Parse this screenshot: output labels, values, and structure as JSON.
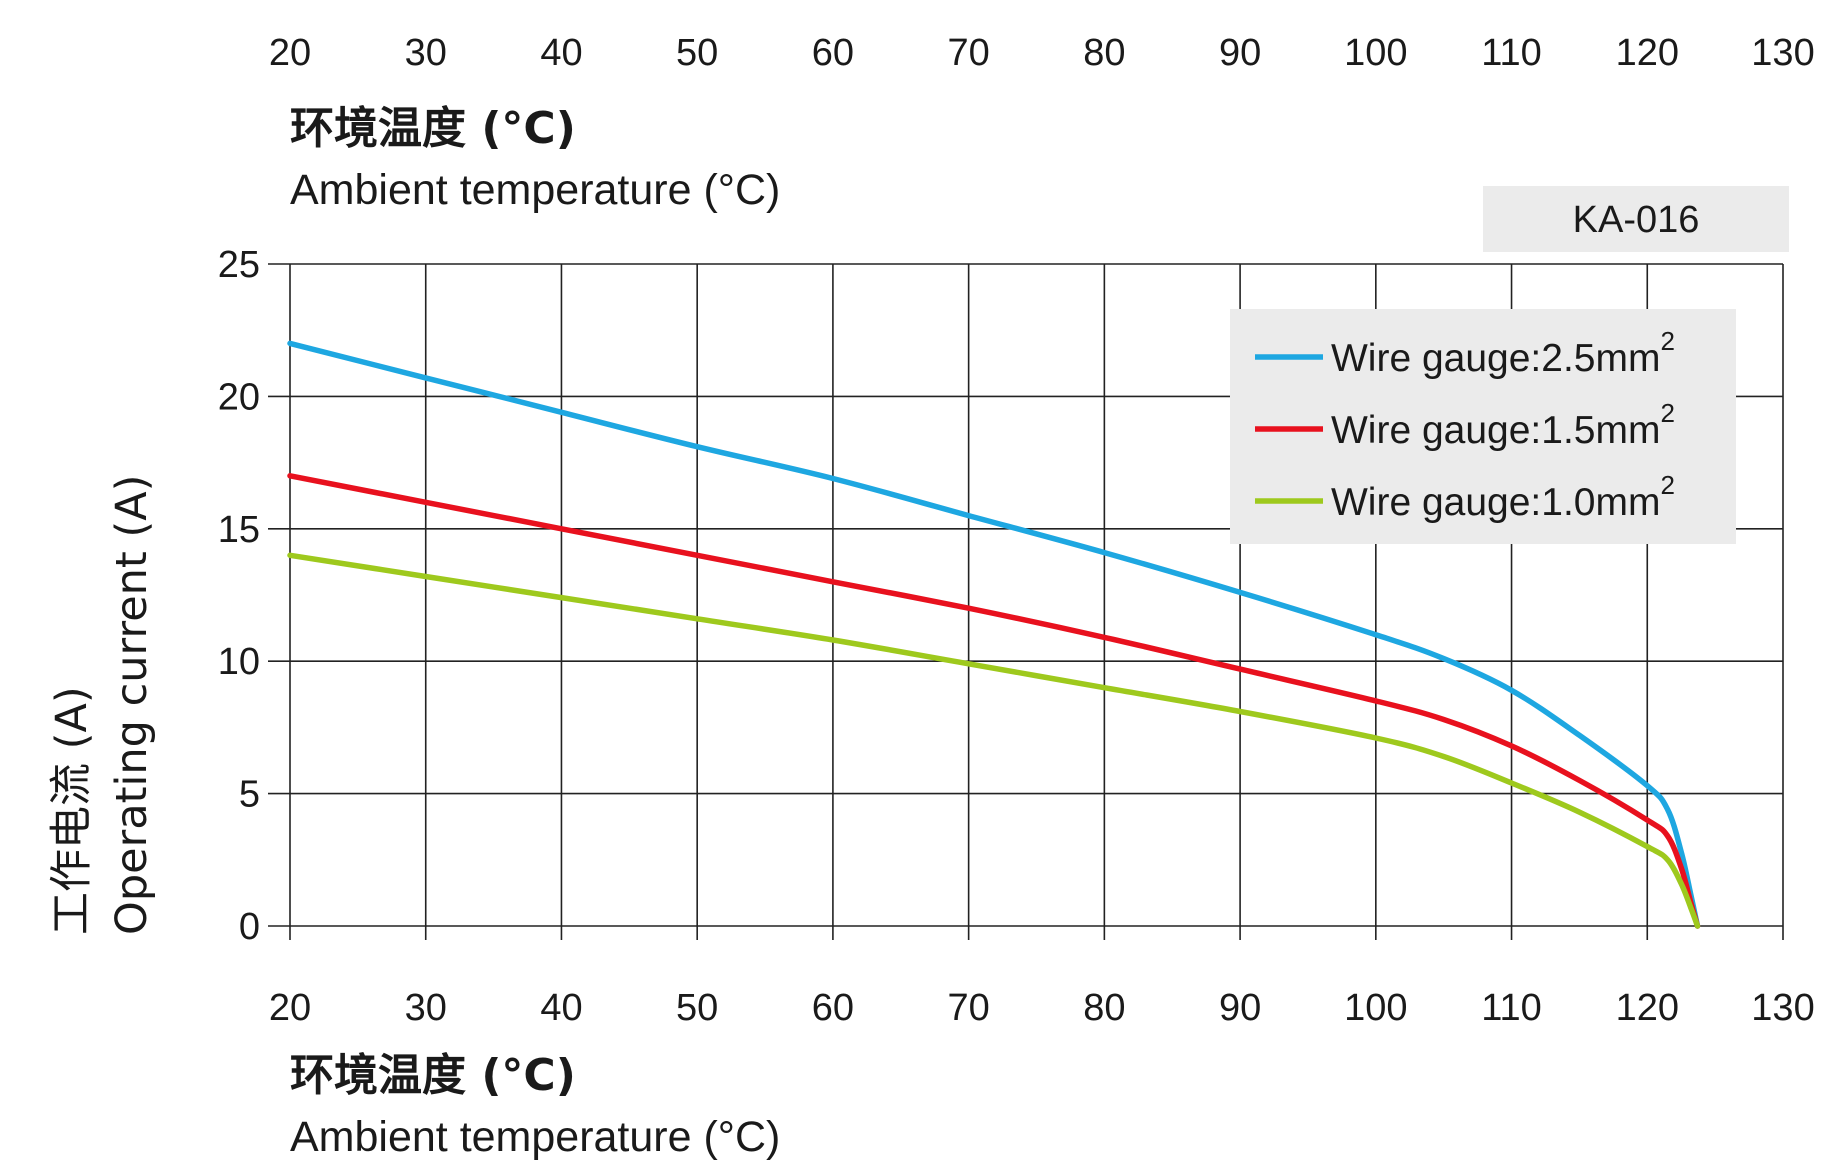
{
  "chart_data": {
    "type": "line",
    "model_label": "KA-016",
    "xlabel_cn": "环境温度 (°C)",
    "xlabel_en": "Ambient temperature (°C)",
    "ylabel_cn": "工作电流 (A)",
    "ylabel_en": "Operating current (A)",
    "xlim": [
      20,
      130
    ],
    "ylim": [
      0,
      25
    ],
    "x_ticks": [
      20,
      30,
      40,
      50,
      60,
      70,
      80,
      90,
      100,
      110,
      120,
      130
    ],
    "y_ticks": [
      0,
      5,
      10,
      15,
      20,
      25
    ],
    "grid": true,
    "legend_position": "top-right",
    "series": [
      {
        "name": "Wire gauge:2.5mm",
        "name_sup": "2",
        "color": "#1ea7e1",
        "points": [
          [
            20,
            22
          ],
          [
            30,
            20.7
          ],
          [
            40,
            19.4
          ],
          [
            50,
            18.1
          ],
          [
            60,
            16.9
          ],
          [
            70,
            15.5
          ],
          [
            80,
            14.1
          ],
          [
            90,
            12.6
          ],
          [
            100,
            11.0
          ],
          [
            105,
            10.1
          ],
          [
            110,
            8.9
          ],
          [
            115,
            7.2
          ],
          [
            120,
            5.3
          ],
          [
            121.5,
            4.4
          ],
          [
            122.5,
            2.8
          ],
          [
            123.2,
            1.2
          ],
          [
            123.7,
            0
          ]
        ]
      },
      {
        "name": "Wire gauge:1.5mm",
        "name_sup": "2",
        "color": "#e8111e",
        "points": [
          [
            20,
            17
          ],
          [
            30,
            16
          ],
          [
            40,
            15
          ],
          [
            50,
            14
          ],
          [
            60,
            13
          ],
          [
            70,
            12
          ],
          [
            80,
            10.9
          ],
          [
            90,
            9.7
          ],
          [
            100,
            8.5
          ],
          [
            105,
            7.8
          ],
          [
            110,
            6.8
          ],
          [
            115,
            5.5
          ],
          [
            120,
            4.0
          ],
          [
            121.5,
            3.4
          ],
          [
            122.5,
            2.2
          ],
          [
            123.2,
            0.9
          ],
          [
            123.7,
            0
          ]
        ]
      },
      {
        "name": "Wire gauge:1.0mm",
        "name_sup": "2",
        "color": "#9ec91d",
        "points": [
          [
            20,
            14
          ],
          [
            30,
            13.2
          ],
          [
            40,
            12.4
          ],
          [
            50,
            11.6
          ],
          [
            60,
            10.8
          ],
          [
            70,
            9.9
          ],
          [
            80,
            9.0
          ],
          [
            90,
            8.1
          ],
          [
            100,
            7.1
          ],
          [
            105,
            6.4
          ],
          [
            110,
            5.4
          ],
          [
            115,
            4.3
          ],
          [
            120,
            3.0
          ],
          [
            121.5,
            2.5
          ],
          [
            122.5,
            1.6
          ],
          [
            123.2,
            0.7
          ],
          [
            123.7,
            0
          ]
        ]
      }
    ]
  }
}
